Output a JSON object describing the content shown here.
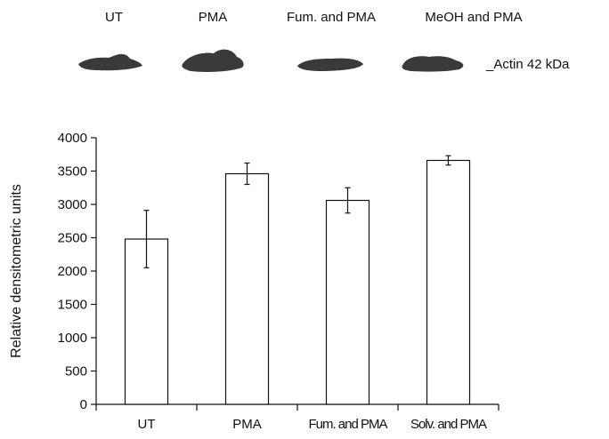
{
  "blot": {
    "lane_labels": [
      "UT",
      "PMA",
      "Fum. and PMA",
      "MeOH and PMA"
    ],
    "band_label": "_Actin 42 kDa",
    "band_color": "#3a3a3a"
  },
  "chart_data": {
    "type": "bar",
    "categories": [
      "UT",
      "PMA",
      "Fum. and PMA",
      "Solv. and PMA"
    ],
    "values": [
      2480,
      3460,
      3060,
      3660
    ],
    "error": [
      430,
      160,
      190,
      70
    ],
    "title": "",
    "xlabel": "",
    "ylabel": "Relative densitometric units",
    "ylim": [
      0,
      4000
    ],
    "yticks": [
      0,
      500,
      1000,
      1500,
      2000,
      2500,
      3000,
      3500,
      4000
    ],
    "grid": false,
    "bar_fill": "#ffffff",
    "bar_stroke": "#111111"
  }
}
